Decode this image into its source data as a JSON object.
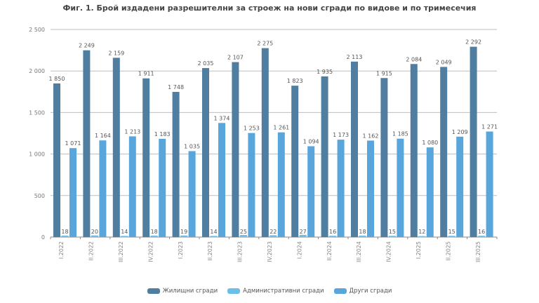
{
  "title": "Фиг. 1. Брой издадени разрешителни за строеж на нови сгради по видове и по тримесечия",
  "colors": {
    "residential": "#4f7ea0",
    "administrative": "#6cbfe8",
    "other": "#58a6dc",
    "grid": "#bdbdbd",
    "axis": "#888888",
    "text": "#555555"
  },
  "chart_data": {
    "type": "bar",
    "title": "Фиг. 1. Брой издадени разрешителни за строеж на нови сгради по видове и по тримесечия",
    "xlabel": "",
    "ylabel": "",
    "ylim": [
      0,
      2500
    ],
    "yticks": [
      0,
      500,
      1000,
      1500,
      2000,
      2500
    ],
    "ytick_labels": [
      "0",
      "500",
      "1 000",
      "1 500",
      "2 000",
      "2 500"
    ],
    "grid": true,
    "legend_position": "bottom",
    "categories": [
      "I.2022",
      "II.2022",
      "III.2022",
      "IV.2022",
      "I.2023",
      "II.2023",
      "III.2023",
      "IV.2023",
      "I.2024",
      "II.2024",
      "III.2024",
      "IV.2024",
      "I.2025",
      "II.2025",
      "III.2025"
    ],
    "series": [
      {
        "name": "Жилищни сгради",
        "values": [
          1850,
          2249,
          2159,
          1911,
          1748,
          2035,
          2107,
          2275,
          1823,
          1935,
          2113,
          1915,
          2084,
          2049,
          2292
        ]
      },
      {
        "name": "Административни сгради",
        "values": [
          18,
          20,
          14,
          18,
          19,
          14,
          25,
          22,
          27,
          16,
          18,
          15,
          12,
          15,
          16
        ]
      },
      {
        "name": "Други сгради",
        "values": [
          1071,
          1164,
          1213,
          1183,
          1035,
          1374,
          1253,
          1261,
          1094,
          1173,
          1162,
          1185,
          1080,
          1209,
          1271
        ]
      }
    ]
  },
  "legend": [
    {
      "label": "Жилищни сгради"
    },
    {
      "label": "Административни сгради"
    },
    {
      "label": "Други сгради"
    }
  ]
}
